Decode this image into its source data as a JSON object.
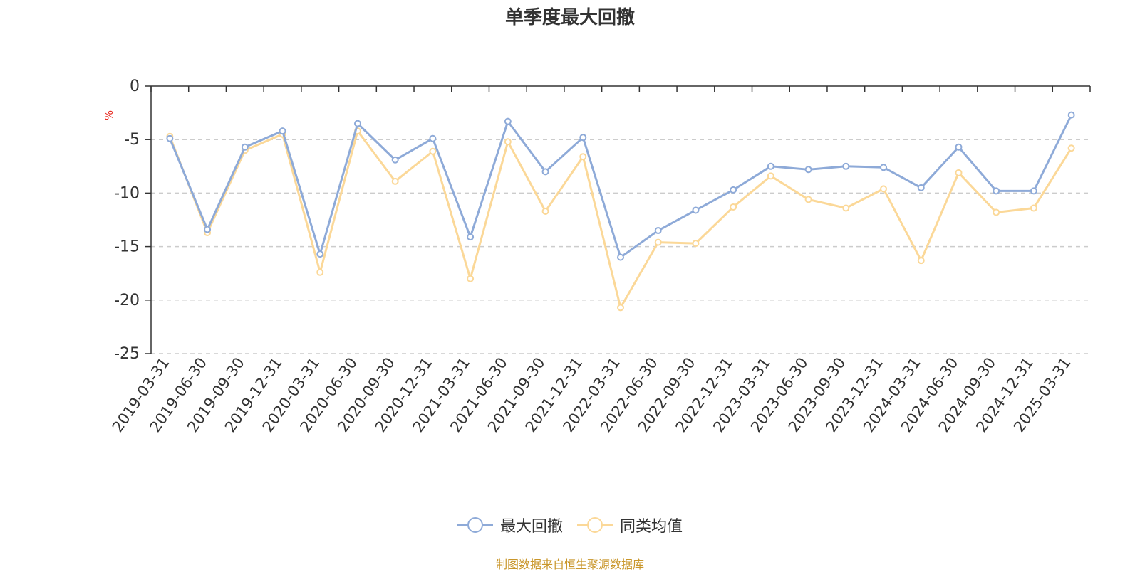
{
  "chart_data": {
    "type": "line",
    "title": "单季度最大回撤",
    "ylabel": "%",
    "ylim": [
      -25,
      0
    ],
    "yticks": [
      0,
      -5,
      -10,
      -15,
      -20,
      -25
    ],
    "grid": true,
    "legend_position": "bottom",
    "categories": [
      "2019-03-31",
      "2019-06-30",
      "2019-09-30",
      "2019-12-31",
      "2020-03-31",
      "2020-06-30",
      "2020-09-30",
      "2020-12-31",
      "2021-03-31",
      "2021-06-30",
      "2021-09-30",
      "2021-12-31",
      "2022-03-31",
      "2022-06-30",
      "2022-09-30",
      "2022-12-31",
      "2023-03-31",
      "2023-06-30",
      "2023-09-30",
      "2023-12-31",
      "2024-03-31",
      "2024-06-30",
      "2024-09-30",
      "2024-12-31",
      "2025-03-31"
    ],
    "series": [
      {
        "name": "最大回撤",
        "color": "#8eaad8",
        "values": [
          -4.9,
          -13.4,
          -5.7,
          -4.2,
          -15.7,
          -3.5,
          -6.9,
          -4.9,
          -14.1,
          -3.3,
          -8.0,
          -4.8,
          -16.0,
          -13.5,
          -11.6,
          -9.7,
          -7.5,
          -7.8,
          -7.5,
          -7.6,
          -9.5,
          -5.7,
          -9.8,
          -9.8,
          -2.7
        ]
      },
      {
        "name": "同类均值",
        "color": "#fbd898",
        "values": [
          -4.7,
          -13.7,
          -6.0,
          -4.5,
          -17.4,
          -4.2,
          -8.9,
          -6.1,
          -18.0,
          -5.2,
          -11.7,
          -6.6,
          -20.7,
          -14.6,
          -14.7,
          -11.3,
          -8.4,
          -10.6,
          -11.4,
          -9.6,
          -16.3,
          -8.1,
          -11.8,
          -11.4,
          -5.8
        ]
      }
    ]
  },
  "source_text": "制图数据来自恒生聚源数据库",
  "colors": {
    "axis": "#333333",
    "grid": "#cccccc",
    "ylabel": "#e8261c",
    "source": "#c9962a"
  }
}
